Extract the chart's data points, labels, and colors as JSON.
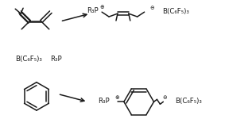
{
  "background": "#ffffff",
  "line_color": "#1a1a1a",
  "line_width": 1.1,
  "fig_width": 2.83,
  "fig_height": 1.74,
  "dpi": 100,
  "plus": "⊕",
  "minus": "⊖",
  "r3p": "R₃P",
  "bcf": "B(C₆F₅)₃",
  "fs_main": 6.2,
  "fs_super": 4.8
}
